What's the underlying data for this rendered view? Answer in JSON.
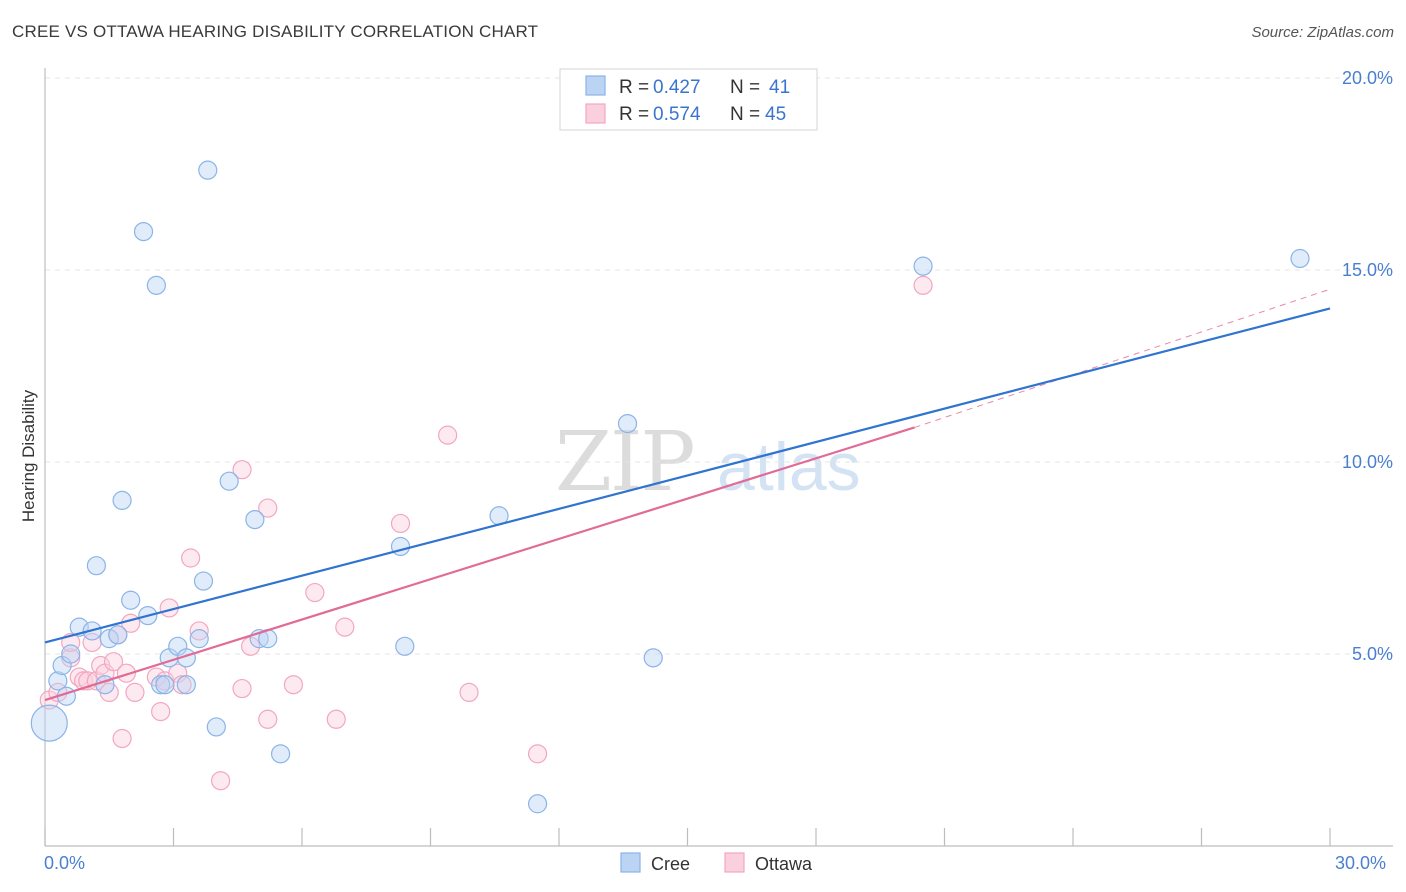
{
  "header": {
    "title": "CREE VS OTTAWA HEARING DISABILITY CORRELATION CHART",
    "source": "Source: ZipAtlas.com"
  },
  "colors": {
    "cree": "#8bb4e8",
    "cree_line": "#2f74d0",
    "ottawa": "#f2a7c0",
    "ottawa_line": "#e26b96",
    "tick": "#4a7fd0"
  },
  "legend": {
    "r_label": "R =",
    "n_label": "N =",
    "cree": {
      "r": "0.427",
      "n": "41"
    },
    "ottawa": {
      "r": "0.574",
      "n": "45"
    }
  },
  "bottom_legend": {
    "cree": "Cree",
    "ottawa": "Ottawa"
  },
  "watermark": {
    "zip": "ZIP",
    "atlas": "atlas"
  },
  "chart_data": {
    "type": "scatter",
    "title": "CREE VS OTTAWA HEARING DISABILITY CORRELATION CHART",
    "xlabel": "",
    "ylabel": "Hearing Disability",
    "xlim": [
      0,
      30
    ],
    "ylim": [
      0,
      20
    ],
    "x_tick_labels": [
      "0.0%",
      "30.0%"
    ],
    "y_tick_labels": [
      "5.0%",
      "10.0%",
      "15.0%",
      "20.0%"
    ],
    "y_ticks": [
      5,
      10,
      15,
      20
    ],
    "series": [
      {
        "name": "Cree",
        "r": 0.427,
        "n": 41,
        "trend": {
          "x": [
            0,
            30
          ],
          "y": [
            5.3,
            14.0
          ]
        },
        "points": [
          [
            0.1,
            3.2
          ],
          [
            0.3,
            4.3
          ],
          [
            0.4,
            4.7
          ],
          [
            0.5,
            3.9
          ],
          [
            0.6,
            5.0
          ],
          [
            0.8,
            5.7
          ],
          [
            1.1,
            5.6
          ],
          [
            1.2,
            7.3
          ],
          [
            1.4,
            4.2
          ],
          [
            1.5,
            5.4
          ],
          [
            1.7,
            5.5
          ],
          [
            1.8,
            9.0
          ],
          [
            2.0,
            6.4
          ],
          [
            2.3,
            16.0
          ],
          [
            2.4,
            6.0
          ],
          [
            2.6,
            14.6
          ],
          [
            2.7,
            4.2
          ],
          [
            2.8,
            4.2
          ],
          [
            2.9,
            4.9
          ],
          [
            3.1,
            5.2
          ],
          [
            3.3,
            4.2
          ],
          [
            3.3,
            4.9
          ],
          [
            3.6,
            5.4
          ],
          [
            3.7,
            6.9
          ],
          [
            3.8,
            17.6
          ],
          [
            4.0,
            3.1
          ],
          [
            4.3,
            9.5
          ],
          [
            4.9,
            8.5
          ],
          [
            5.0,
            5.4
          ],
          [
            5.2,
            5.4
          ],
          [
            5.5,
            2.4
          ],
          [
            8.3,
            7.8
          ],
          [
            8.4,
            5.2
          ],
          [
            10.6,
            8.6
          ],
          [
            11.5,
            1.1
          ],
          [
            13.6,
            11.0
          ],
          [
            14.2,
            4.9
          ],
          [
            20.5,
            15.1
          ],
          [
            29.3,
            15.3
          ]
        ]
      },
      {
        "name": "Ottawa",
        "r": 0.574,
        "n": 45,
        "trend": {
          "x": [
            0,
            20.3
          ],
          "y": [
            3.8,
            10.9
          ]
        },
        "dashed_extension": {
          "x": [
            20.3,
            30
          ],
          "y": [
            10.9,
            14.5
          ]
        },
        "points": [
          [
            0.1,
            3.8
          ],
          [
            0.3,
            4.0
          ],
          [
            0.6,
            4.9
          ],
          [
            0.6,
            5.3
          ],
          [
            0.8,
            4.4
          ],
          [
            0.9,
            4.3
          ],
          [
            1.0,
            4.3
          ],
          [
            1.1,
            5.3
          ],
          [
            1.2,
            4.3
          ],
          [
            1.3,
            4.7
          ],
          [
            1.4,
            4.5
          ],
          [
            1.5,
            4.0
          ],
          [
            1.6,
            4.8
          ],
          [
            1.7,
            5.5
          ],
          [
            1.8,
            2.8
          ],
          [
            1.9,
            4.5
          ],
          [
            2.0,
            5.8
          ],
          [
            2.1,
            4.0
          ],
          [
            2.6,
            4.4
          ],
          [
            2.7,
            3.5
          ],
          [
            2.8,
            4.3
          ],
          [
            2.9,
            6.2
          ],
          [
            3.1,
            4.5
          ],
          [
            3.2,
            4.2
          ],
          [
            3.4,
            7.5
          ],
          [
            3.6,
            5.6
          ],
          [
            4.1,
            1.7
          ],
          [
            4.6,
            4.1
          ],
          [
            4.6,
            9.8
          ],
          [
            4.8,
            5.2
          ],
          [
            5.2,
            8.8
          ],
          [
            5.2,
            3.3
          ],
          [
            5.8,
            4.2
          ],
          [
            6.3,
            6.6
          ],
          [
            6.8,
            3.3
          ],
          [
            7.0,
            5.7
          ],
          [
            8.3,
            8.4
          ],
          [
            9.4,
            10.7
          ],
          [
            9.9,
            4.0
          ],
          [
            11.5,
            2.4
          ],
          [
            20.5,
            14.6
          ]
        ]
      }
    ]
  }
}
